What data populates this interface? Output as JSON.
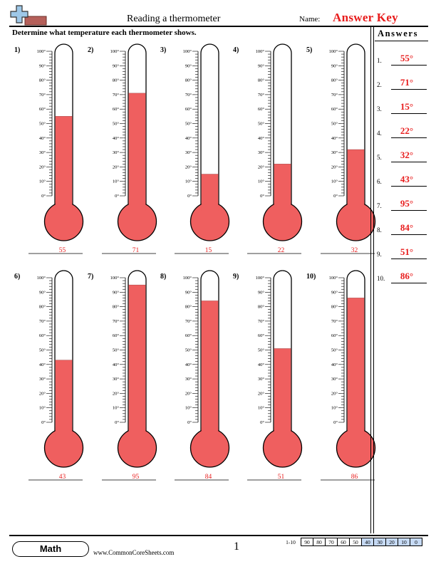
{
  "header": {
    "title": "Reading a thermometer",
    "name_label": "Name:",
    "answer_key": "Answer Key"
  },
  "instructions": "Determine what temperature each thermometer shows.",
  "answers_heading": "Answers",
  "problem_labels": [
    "1)",
    "2)",
    "3)",
    "4)",
    "5)",
    "6)",
    "7)",
    "8)",
    "9)",
    "10)"
  ],
  "tick_labels": [
    "100°",
    "90°",
    "80°",
    "70°",
    "60°",
    "50°",
    "40°",
    "30°",
    "20°",
    "10°",
    "0°"
  ],
  "temperatures": [
    55,
    71,
    15,
    22,
    32,
    43,
    95,
    84,
    51,
    86
  ],
  "written_answers": [
    "55",
    "71",
    "15",
    "22",
    "32",
    "43",
    "95",
    "84",
    "51",
    "86"
  ],
  "answers": [
    {
      "num": "1.",
      "value": "55°"
    },
    {
      "num": "2.",
      "value": "71°"
    },
    {
      "num": "3.",
      "value": "15°"
    },
    {
      "num": "4.",
      "value": "22°"
    },
    {
      "num": "5.",
      "value": "32°"
    },
    {
      "num": "6.",
      "value": "43°"
    },
    {
      "num": "7.",
      "value": "95°"
    },
    {
      "num": "8.",
      "value": "84°"
    },
    {
      "num": "9.",
      "value": "51°"
    },
    {
      "num": "10.",
      "value": "86°"
    }
  ],
  "colors": {
    "mercury": "#ef5f5f",
    "answer_red": "#e81d1d",
    "score_highlight": "#c6daf5"
  },
  "footer": {
    "subject": "Math",
    "site": "www.CommonCoreSheets.com",
    "page": "1",
    "score_label": "1-10",
    "scores": [
      "90",
      "80",
      "70",
      "60",
      "50",
      "40",
      "30",
      "20",
      "10",
      "0"
    ],
    "highlighted_scores": [
      "40",
      "30",
      "20",
      "10",
      "0"
    ]
  }
}
